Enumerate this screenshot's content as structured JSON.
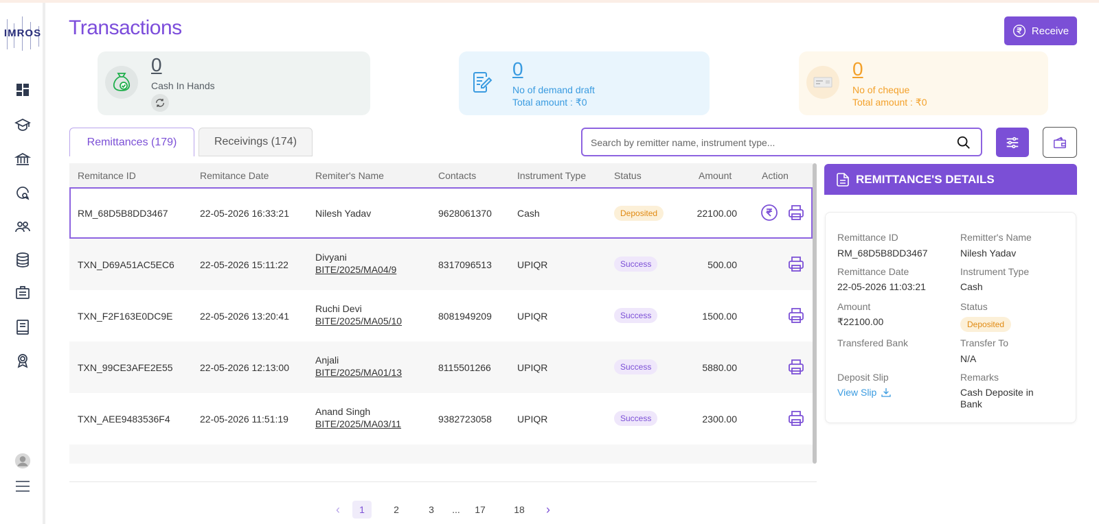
{
  "app": {
    "logo_text": "IMROS"
  },
  "header": {
    "title": "Transactions",
    "receive_label": "Receive"
  },
  "summary": {
    "cash": {
      "value": "0",
      "label": "Cash In Hands"
    },
    "demand_draft": {
      "value": "0",
      "label": "No of demand draft",
      "total": "Total amount : ₹0"
    },
    "cheque": {
      "value": "0",
      "label": "No of cheque",
      "total": "Total amount : ₹0"
    }
  },
  "tabs": [
    {
      "label": "Remittances (179)",
      "active": true
    },
    {
      "label": "Receivings (174)",
      "active": false
    }
  ],
  "search": {
    "placeholder": "Search by remitter name, instrument type...",
    "value": ""
  },
  "table": {
    "columns": [
      "Remitance ID",
      "Remitance Date",
      "Remiter's Name",
      "Contacts",
      "Instrument Type",
      "Status",
      "Amount",
      "Action"
    ],
    "rows": [
      {
        "id": "RM_68D5B8DD3467",
        "date": "22-05-2026 16:33:21",
        "name": "Nilesh Yadav",
        "sub": "",
        "contact": "9628061370",
        "instrument": "Cash",
        "status": "Deposited",
        "amount": "22100.00",
        "has_deposit_action": true
      },
      {
        "id": "TXN_D69A51AC5EC6",
        "date": "22-05-2026 15:11:22",
        "name": "Divyani",
        "sub": "BITE/2025/MA04/9",
        "contact": "8317096513",
        "instrument": "UPIQR",
        "status": "Success",
        "amount": "500.00",
        "has_deposit_action": false
      },
      {
        "id": "TXN_F2F163E0DC9E",
        "date": "22-05-2026 13:20:41",
        "name": "Ruchi Devi",
        "sub": "BITE/2025/MA05/10",
        "contact": "8081949209",
        "instrument": "UPIQR",
        "status": "Success",
        "amount": "1500.00",
        "has_deposit_action": false
      },
      {
        "id": "TXN_99CE3AFE2E55",
        "date": "22-05-2026 12:13:00",
        "name": "Anjali",
        "sub": "BITE/2025/MA01/13",
        "contact": "8115501266",
        "instrument": "UPIQR",
        "status": "Success",
        "amount": "5880.00",
        "has_deposit_action": false
      },
      {
        "id": "TXN_AEE9483536F4",
        "date": "22-05-2026 11:51:19",
        "name": "Anand Singh",
        "sub": "BITE/2025/MA03/11",
        "contact": "9382723058",
        "instrument": "UPIQR",
        "status": "Success",
        "amount": "2300.00",
        "has_deposit_action": false
      }
    ]
  },
  "pagination": {
    "pages": [
      "1",
      "2",
      "3",
      "...",
      "17",
      "18"
    ],
    "current": "1"
  },
  "details": {
    "title": "REMITTANCE'S DETAILS",
    "fields": {
      "remittance_id_label": "Remittance ID",
      "remittance_id": "RM_68D5B8DD3467",
      "remitter_name_label": "Remitter's Name",
      "remitter_name": "Nilesh Yadav",
      "remittance_date_label": "Remittance Date",
      "remittance_date": "22-05-2026 11:03:21",
      "instrument_type_label": "Instrument Type",
      "instrument_type": "Cash",
      "amount_label": "Amount",
      "amount": "₹22100.00",
      "status_label": "Status",
      "status": "Deposited",
      "transfered_bank_label": "Transfered Bank",
      "transfered_bank": "",
      "transfer_to_label": "Transfer To",
      "transfer_to": "N/A",
      "deposit_slip_label": "Deposit Slip",
      "deposit_slip_link": "View Slip",
      "remarks_label": "Remarks",
      "remarks_line1": "Cash Deposite in",
      "remarks_line2": "Bank"
    }
  },
  "colors": {
    "accent": "#7b4fd6",
    "deposited_bg": "#fcf0d8",
    "deposited_text": "#e08a12",
    "success_bg": "#efe7fb",
    "dd_blue": "#3a9be0",
    "cheque_orange": "#f3a12b"
  }
}
